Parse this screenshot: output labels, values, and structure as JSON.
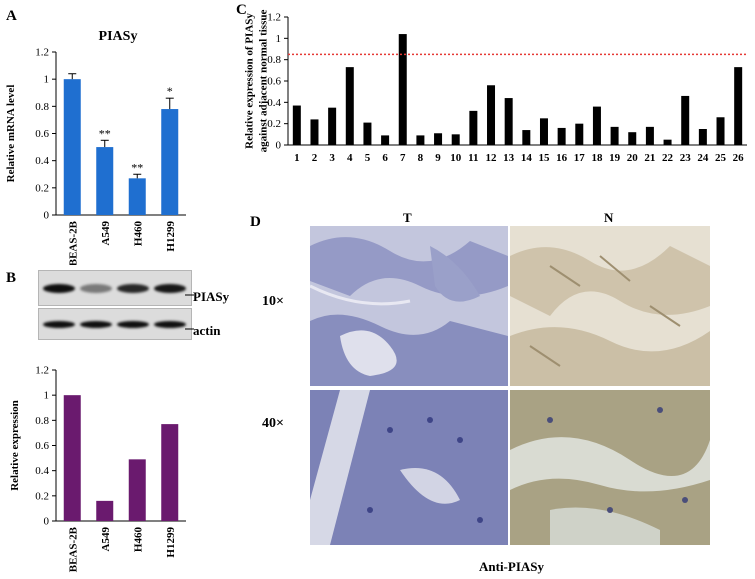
{
  "panels": {
    "A": {
      "letter": "A"
    },
    "B": {
      "letter": "B",
      "blot_labels": {
        "protein": "PIASy",
        "loading": "actin"
      }
    },
    "C": {
      "letter": "C"
    },
    "D": {
      "letter": "D",
      "columns": {
        "tumor": "T",
        "normal": "N"
      },
      "rows": {
        "low": "10×",
        "high": "40×"
      },
      "caption": "Anti-PIASy"
    }
  },
  "colors": {
    "panelA_bar": "#1f6fd0",
    "panelB_bar": "#6a1a6e",
    "panelC_bar": "#000000",
    "threshold_line": "#e53935",
    "tumor_stain": "#7f85b9",
    "normal_stain": "#b9ab8d"
  },
  "chart_data": [
    {
      "id": "A",
      "type": "bar",
      "title": "PIASy",
      "categories": [
        "BEAS-2B",
        "A549",
        "H460",
        "H1299"
      ],
      "values": [
        1.0,
        0.5,
        0.27,
        0.78
      ],
      "errors": [
        0.04,
        0.05,
        0.03,
        0.08
      ],
      "annotations": [
        "",
        "**",
        "**",
        "*"
      ],
      "ylabel": "Relative mRNA level",
      "ylim": [
        0,
        1.2
      ],
      "yticks": [
        "0",
        "0.2",
        "0.4",
        "0.6",
        "0.8",
        "1",
        "1.2"
      ]
    },
    {
      "id": "B",
      "type": "bar",
      "categories": [
        "BEAS-2B",
        "A549",
        "H460",
        "H1299"
      ],
      "values": [
        1.0,
        0.16,
        0.49,
        0.77
      ],
      "ylabel": "Relative expression",
      "ylim": [
        0,
        1.2
      ],
      "yticks": [
        "0",
        "0.2",
        "0.4",
        "0.6",
        "0.8",
        "1",
        "1.2"
      ],
      "blot_intensity": {
        "protein": [
          1.0,
          0.35,
          0.85,
          0.95
        ],
        "loading": [
          1,
          1,
          1,
          1
        ]
      }
    },
    {
      "id": "C",
      "type": "bar",
      "categories": [
        "1",
        "2",
        "3",
        "4",
        "5",
        "6",
        "7",
        "8",
        "9",
        "10",
        "11",
        "12",
        "13",
        "14",
        "15",
        "16",
        "17",
        "18",
        "19",
        "20",
        "21",
        "22",
        "23",
        "24",
        "25",
        "26"
      ],
      "values": [
        0.37,
        0.24,
        0.35,
        0.73,
        0.21,
        0.09,
        1.04,
        0.09,
        0.11,
        0.1,
        0.32,
        0.56,
        0.44,
        0.14,
        0.25,
        0.16,
        0.2,
        0.36,
        0.17,
        0.12,
        0.17,
        0.05,
        0.46,
        0.15,
        0.26,
        0.73
      ],
      "threshold": 0.85,
      "ylabel": "Relative expression of PIASy against adjacent normal tissue",
      "ylim": [
        0,
        1.2
      ],
      "yticks": [
        "0",
        "0.2",
        "0.4",
        "0.6",
        "0.8",
        "1",
        "1.2"
      ]
    }
  ]
}
